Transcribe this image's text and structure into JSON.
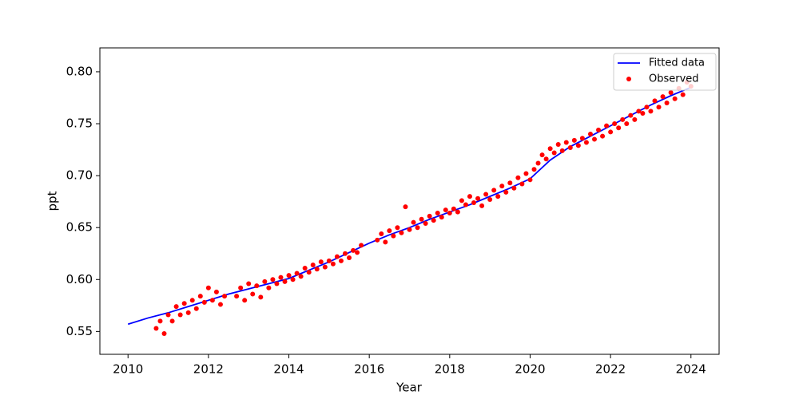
{
  "chart_data": {
    "type": "scatter",
    "xlabel": "Year",
    "ylabel": "ppt",
    "xlim": [
      2009.3,
      2024.7
    ],
    "xticks": [
      2010,
      2012,
      2014,
      2016,
      2018,
      2020,
      2022,
      2024
    ],
    "ylim": [
      0.528,
      0.823
    ],
    "yticks": [
      0.55,
      {
        "value": 0.6,
        "label": "0.60"
      },
      0.65,
      {
        "value": 0.7,
        "label": "0.70"
      },
      0.75,
      {
        "value": 0.8,
        "label": "0.80"
      }
    ],
    "grid": false,
    "legend": "upper right",
    "series": [
      {
        "name": "Fitted data",
        "type": "line",
        "color": "#0000ff",
        "x": [
          2010,
          2010.5,
          2011,
          2011.5,
          2012,
          2012.5,
          2013,
          2013.5,
          2014,
          2014.5,
          2015,
          2015.5,
          2016,
          2016.5,
          2017,
          2017.5,
          2018,
          2018.5,
          2019,
          2019.5,
          2020,
          2020.5,
          2021,
          2021.5,
          2022,
          2022.5,
          2023,
          2023.5,
          2024
        ],
        "values": [
          0.557,
          0.563,
          0.568,
          0.574,
          0.58,
          0.586,
          0.591,
          0.596,
          0.601,
          0.609,
          0.617,
          0.626,
          0.635,
          0.643,
          0.65,
          0.658,
          0.665,
          0.672,
          0.68,
          0.688,
          0.697,
          0.715,
          0.728,
          0.738,
          0.748,
          0.758,
          0.768,
          0.777,
          0.785
        ]
      },
      {
        "name": "Observed",
        "type": "scatter",
        "color": "#ff0000",
        "x": [
          2010.7,
          2010.8,
          2010.9,
          2011.0,
          2011.1,
          2011.2,
          2011.3,
          2011.4,
          2011.5,
          2011.6,
          2011.7,
          2011.8,
          2011.9,
          2012.0,
          2012.1,
          2012.2,
          2012.3,
          2012.4,
          2012.7,
          2012.8,
          2012.9,
          2013.0,
          2013.1,
          2013.2,
          2013.3,
          2013.4,
          2013.5,
          2013.6,
          2013.7,
          2013.8,
          2013.9,
          2014.0,
          2014.1,
          2014.2,
          2014.3,
          2014.4,
          2014.5,
          2014.6,
          2014.7,
          2014.8,
          2014.9,
          2015.0,
          2015.1,
          2015.2,
          2015.3,
          2015.4,
          2015.5,
          2015.6,
          2015.7,
          2015.8,
          2016.2,
          2016.3,
          2016.4,
          2016.5,
          2016.6,
          2016.7,
          2016.8,
          2016.9,
          2017.0,
          2017.1,
          2017.2,
          2017.3,
          2017.4,
          2017.5,
          2017.6,
          2017.7,
          2017.8,
          2017.9,
          2018.0,
          2018.1,
          2018.2,
          2018.3,
          2018.4,
          2018.5,
          2018.6,
          2018.7,
          2018.8,
          2018.9,
          2019.0,
          2019.1,
          2019.2,
          2019.3,
          2019.4,
          2019.5,
          2019.6,
          2019.7,
          2019.8,
          2019.9,
          2020.0,
          2020.1,
          2020.2,
          2020.3,
          2020.4,
          2020.5,
          2020.6,
          2020.7,
          2020.8,
          2020.9,
          2021.0,
          2021.1,
          2021.2,
          2021.3,
          2021.4,
          2021.5,
          2021.6,
          2021.7,
          2021.8,
          2021.9,
          2022.0,
          2022.1,
          2022.2,
          2022.3,
          2022.4,
          2022.5,
          2022.6,
          2022.7,
          2022.8,
          2022.9,
          2023.0,
          2023.1,
          2023.2,
          2023.3,
          2023.4,
          2023.5,
          2023.6,
          2023.7,
          2023.8,
          2023.9,
          2024.0
        ],
        "values": [
          0.553,
          0.56,
          0.548,
          0.566,
          0.56,
          0.574,
          0.566,
          0.577,
          0.568,
          0.58,
          0.572,
          0.584,
          0.578,
          0.592,
          0.58,
          0.588,
          0.576,
          0.584,
          0.584,
          0.592,
          0.58,
          0.596,
          0.586,
          0.594,
          0.583,
          0.598,
          0.592,
          0.6,
          0.596,
          0.602,
          0.598,
          0.604,
          0.6,
          0.606,
          0.603,
          0.611,
          0.607,
          0.614,
          0.61,
          0.617,
          0.612,
          0.618,
          0.615,
          0.622,
          0.618,
          0.625,
          0.621,
          0.628,
          0.626,
          0.633,
          0.638,
          0.644,
          0.636,
          0.647,
          0.642,
          0.65,
          0.645,
          0.67,
          0.648,
          0.655,
          0.65,
          0.658,
          0.654,
          0.661,
          0.657,
          0.664,
          0.66,
          0.667,
          0.664,
          0.668,
          0.665,
          0.676,
          0.672,
          0.68,
          0.674,
          0.678,
          0.671,
          0.682,
          0.677,
          0.686,
          0.68,
          0.69,
          0.684,
          0.693,
          0.688,
          0.698,
          0.692,
          0.702,
          0.696,
          0.706,
          0.712,
          0.72,
          0.716,
          0.726,
          0.722,
          0.73,
          0.724,
          0.732,
          0.727,
          0.734,
          0.729,
          0.736,
          0.732,
          0.74,
          0.735,
          0.744,
          0.738,
          0.748,
          0.742,
          0.75,
          0.746,
          0.754,
          0.75,
          0.758,
          0.754,
          0.762,
          0.76,
          0.766,
          0.762,
          0.772,
          0.766,
          0.776,
          0.77,
          0.78,
          0.774,
          0.784,
          0.778,
          0.79,
          0.786
        ]
      }
    ]
  }
}
